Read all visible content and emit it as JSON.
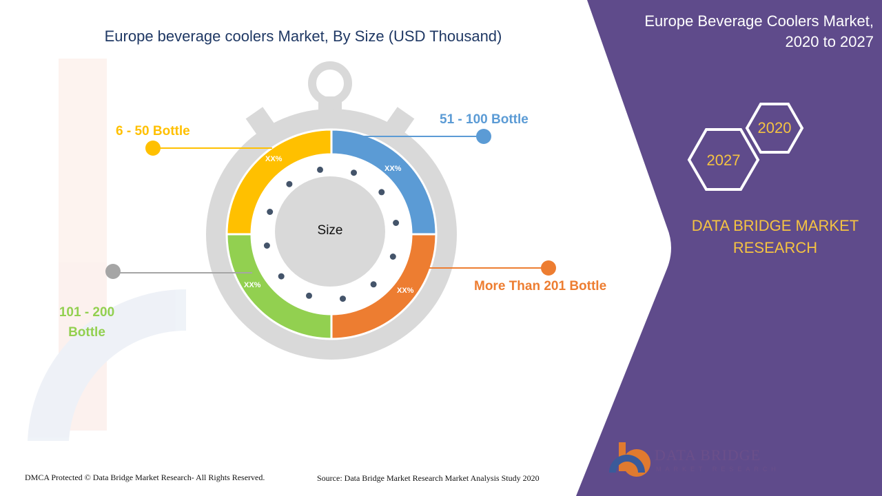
{
  "header": {
    "chart_title": "Europe beverage coolers Market, By Size (USD Thousand)",
    "right_title_line1": "Europe Beverage Coolers Market,",
    "right_title_line2": "2020 to 2027"
  },
  "diagram": {
    "center_label": "Size",
    "segment_value_label": "XX%",
    "segments": [
      {
        "name": "6 - 50 Bottle",
        "color": "#ffc000",
        "value_label": "XX%"
      },
      {
        "name": "51 - 100 Bottle",
        "color": "#5b9bd5",
        "value_label": "XX%"
      },
      {
        "name": "More Than 201 Bottle",
        "color": "#ed7d31",
        "value_label": "XX%"
      },
      {
        "name_line1": "101 - 200",
        "name_line2": "Bottle",
        "color": "#92d050",
        "value_label": "XX%"
      }
    ],
    "colors": {
      "watch_body": "#d9d9d9",
      "inner_circle": "#d9d9d9",
      "dots": "#44546a",
      "connector_gray": "#a5a5a5"
    }
  },
  "side_panel": {
    "background": "#5f4b8b",
    "year_start": "2020",
    "year_end": "2027",
    "brand_line1": "DATA BRIDGE MARKET",
    "brand_line2": "RESEARCH",
    "accent": "#f5c342"
  },
  "footer": {
    "copyright": "DMCA Protected © Data Bridge Market Research- All Rights Reserved.",
    "source": "Source: Data Bridge Market Research Market Analysis Study 2020"
  },
  "logo": {
    "name": "DATA BRIDGE",
    "tagline": "MARKET RESEARCH"
  }
}
